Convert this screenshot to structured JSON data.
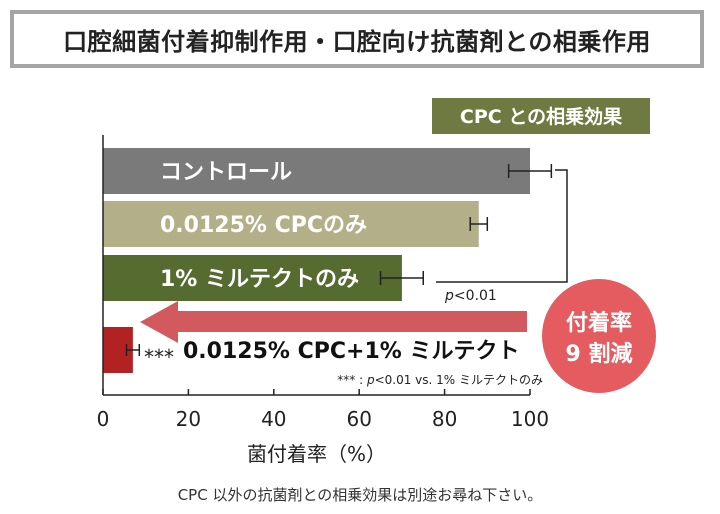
{
  "title": "口腔細菌付着抑制作用・口腔向け抗菌剤との相乗作用",
  "legend_badge": "CPC との相乗効果",
  "footnote": "CPC 以外の抗菌剤との相乗効果は別途お尋ね下さい。",
  "callout": {
    "line1": "付着率",
    "line2": "9 割減"
  },
  "colors": {
    "control": "#7a7a7a",
    "cpc_only": "#b3b089",
    "miltect_only": "#556b2f",
    "combo": "#b22222",
    "badge": "#6f7a42",
    "arrow": "#d25a5f",
    "callout": "#e45c5f"
  },
  "chart_data": {
    "type": "bar",
    "orientation": "horizontal",
    "categories": [
      "コントロール",
      "0.0125% CPCのみ",
      "1% ミルテクトのみ",
      "0.0125% CPC+1% ミルテクト"
    ],
    "values": [
      100,
      88,
      70,
      7
    ],
    "errors": [
      5,
      2,
      5,
      1.5
    ],
    "xlabel": "菌付着率（%）",
    "xlim": [
      0,
      100
    ],
    "xticks": [
      "0",
      "20",
      "40",
      "60",
      "80",
      "100"
    ],
    "grid": false,
    "annotations": {
      "bracket_label_p": "p",
      "bracket_label_rest": "<0.01",
      "combo_stars": "***",
      "stars_note_prefix": "*** : ",
      "stars_note_p": "p",
      "stars_note_rest": "<0.01 vs. 1% ミルテクトのみ"
    }
  }
}
